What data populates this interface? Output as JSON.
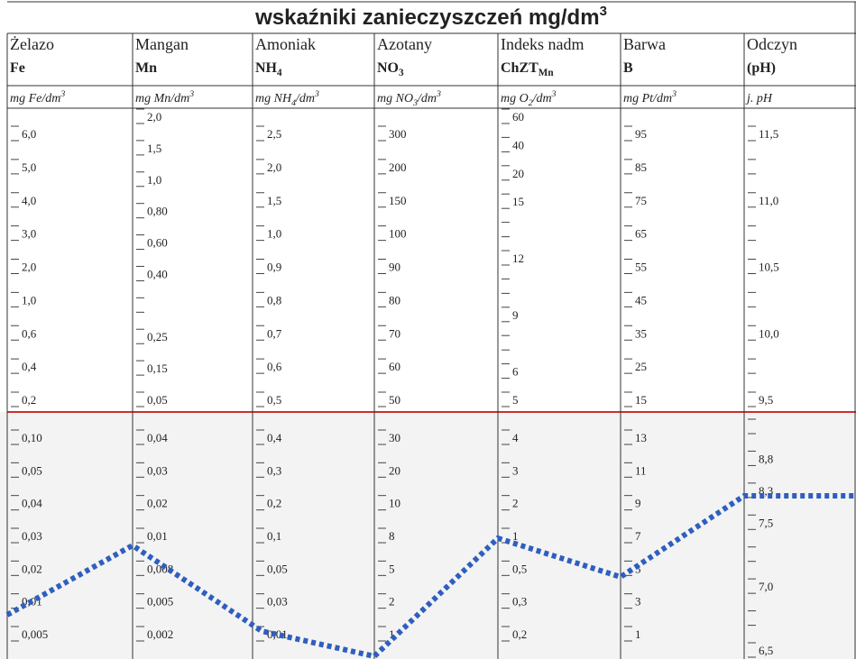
{
  "title": {
    "text": "wskaźniki zanieczyszczeń  mg/dm",
    "sup": "3"
  },
  "columns": [
    {
      "name": "Żelazo",
      "symbol": [
        {
          "text": "Fe"
        }
      ],
      "unit": [
        {
          "text": "mg Fe/dm"
        },
        {
          "sup": "3"
        }
      ],
      "scale_upper": [
        "6,0",
        "5,0",
        "4,0",
        "3,0",
        "2,0",
        "1,0",
        "0,6",
        "0,4",
        "0,2"
      ],
      "scale_lower": [
        "0,10",
        "0,05",
        "0,04",
        "0,03",
        "0,02",
        "0,01",
        "0,005"
      ]
    },
    {
      "name": "Mangan",
      "symbol": [
        {
          "text": "Mn"
        }
      ],
      "unit": [
        {
          "text": "mg Mn/dm"
        },
        {
          "sup": "3"
        }
      ],
      "scale_upper": [
        "2,0",
        "1,5",
        "1,0",
        "0,80",
        "0,60",
        "0,40",
        null,
        "0,25",
        "0,15",
        "0,05"
      ],
      "scale_lower": [
        "0,04",
        "0,03",
        "0,02",
        "0,01",
        "0,008",
        "0,005",
        "0,002"
      ]
    },
    {
      "name": "Amoniak",
      "symbol": [
        {
          "text": "NH"
        },
        {
          "sub": "4"
        }
      ],
      "unit": [
        {
          "text": "mg NH"
        },
        {
          "sub": "4"
        },
        {
          "text": "/dm"
        },
        {
          "sup": "3"
        }
      ],
      "scale_upper": [
        "2,5",
        "2,0",
        "1,5",
        "1,0",
        "0,9",
        "0,8",
        "0,7",
        "0,6",
        "0,5"
      ],
      "scale_lower": [
        "0,4",
        "0,3",
        "0,2",
        "0,1",
        "0,05",
        "0,03",
        "0,01"
      ]
    },
    {
      "name": "Azotany",
      "symbol": [
        {
          "text": "NO"
        },
        {
          "sub": "3"
        }
      ],
      "unit": [
        {
          "text": "mg NO"
        },
        {
          "sub": "3"
        },
        {
          "text": "/dm"
        },
        {
          "sup": "3"
        }
      ],
      "scale_upper": [
        "300",
        "200",
        "150",
        "100",
        "90",
        "80",
        "70",
        "60",
        "50"
      ],
      "scale_lower": [
        "30",
        "20",
        "10",
        "8",
        "5",
        "2",
        "1"
      ]
    },
    {
      "name": "Indeks nadm",
      "symbol": [
        {
          "text": "ChZT"
        },
        {
          "sub": "Mn"
        }
      ],
      "unit": [
        {
          "text": "mg O"
        },
        {
          "sub": "2"
        },
        {
          "text": "/dm"
        },
        {
          "sup": "3"
        }
      ],
      "scale_upper": [
        "60",
        "40",
        "20",
        "15",
        null,
        "12",
        null,
        "9",
        null,
        "6",
        "5"
      ],
      "scale_lower": [
        "4",
        "3",
        "2",
        "1",
        "0,5",
        "0,3",
        "0,2"
      ]
    },
    {
      "name": "Barwa",
      "symbol": [
        {
          "text": "B"
        }
      ],
      "unit": [
        {
          "text": "mg Pt/dm"
        },
        {
          "sup": "3"
        }
      ],
      "scale_upper": [
        "95",
        "85",
        "75",
        "65",
        "55",
        "45",
        "35",
        "25",
        "15"
      ],
      "scale_lower": [
        "13",
        "11",
        "9",
        "7",
        "5",
        "3",
        "1"
      ]
    },
    {
      "name": "Odczyn",
      "symbol": [
        {
          "text": "(pH)"
        }
      ],
      "unit": [
        {
          "text": "j. pH"
        }
      ],
      "scale_upper": [
        "11,5",
        null,
        "11,0",
        null,
        "10,5",
        null,
        "10,0",
        null,
        "9,5"
      ],
      "scale_lower": [
        null,
        "8,8",
        "8,3",
        "7,5",
        null,
        "7,0",
        null,
        "6,5"
      ]
    }
  ]
}
